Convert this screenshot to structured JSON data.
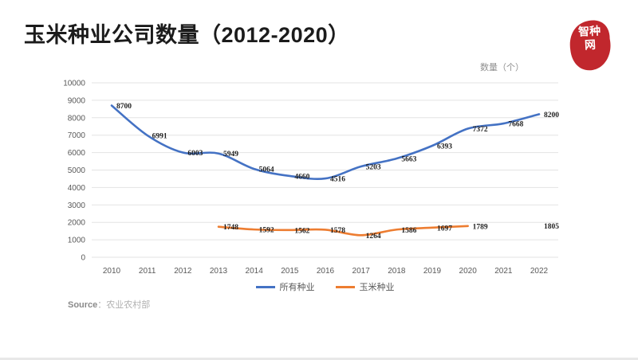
{
  "page": {
    "title": "玉米种业公司数量（2012-2020）",
    "source_label": "Source",
    "source_value": "：农业农村部",
    "logo_line1": "智种",
    "logo_line2": "网",
    "logo_color": "#c1272d"
  },
  "chart_data": {
    "type": "line",
    "title": "玉米种业公司数量（2012-2020）",
    "unit_label": "数量（个）",
    "x": [
      2010,
      2011,
      2012,
      2013,
      2014,
      2015,
      2016,
      2017,
      2018,
      2019,
      2020,
      2021,
      2022
    ],
    "series": [
      {
        "id": "all-seed",
        "name": "所有种业",
        "color": "#4472C4",
        "values": [
          8700,
          6991,
          6003,
          5949,
          5064,
          4660,
          4516,
          5203,
          5663,
          6393,
          7372,
          7668,
          8200
        ]
      },
      {
        "id": "corn-seed",
        "name": "玉米种业",
        "color": "#ED7D31",
        "values": [
          null,
          null,
          null,
          1748,
          1592,
          1562,
          1578,
          1264,
          1586,
          1697,
          1789,
          null,
          1805
        ]
      }
    ],
    "ylim": [
      0,
      10000
    ],
    "ytick_step": 1000,
    "grid": true,
    "legend_position": "bottom",
    "grid_color": "#e3e3e3",
    "axis_text_color": "#595959",
    "data_label_color": "#1f1f1f"
  }
}
